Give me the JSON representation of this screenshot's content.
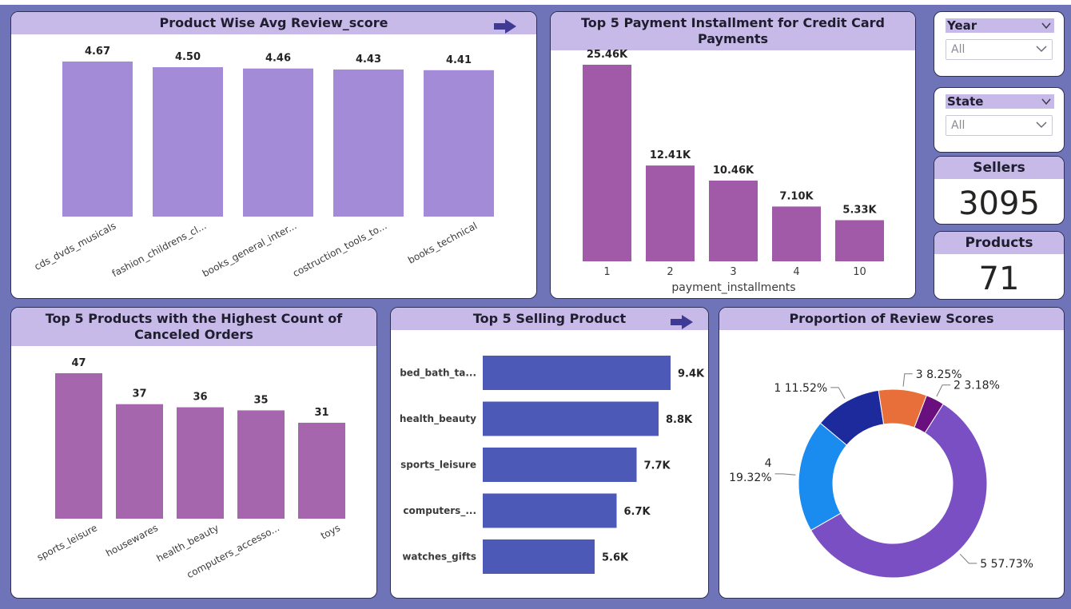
{
  "charts": {
    "review_score": {
      "title": "Product Wise Avg Review_score",
      "arrow_icon": "arrow-right-icon",
      "color": "#a48bd8"
    },
    "installments": {
      "title": "Top 5 Payment Installment for Credit Card Payments",
      "color": "#a15aa8"
    },
    "canceled": {
      "title": "Top 5 Products with the Highest Count of Canceled Orders",
      "color": "#a566ae"
    },
    "selling": {
      "title": "Top 5 Selling Product",
      "arrow_icon": "arrow-right-icon",
      "color": "#4d59b7"
    },
    "proportion": {
      "title": "Proportion of Review Scores"
    }
  },
  "slicers": {
    "year": {
      "label": "Year",
      "value": "All"
    },
    "state": {
      "label": "State",
      "value": "All"
    }
  },
  "kpis": {
    "sellers": {
      "label": "Sellers",
      "value": "3095"
    },
    "products": {
      "label": "Products",
      "value": "71"
    }
  },
  "chart_data": [
    {
      "type": "bar",
      "title": "Product Wise Avg Review_score",
      "categories": [
        "cds_dvds_musicals",
        "fashion_childrens_cl...",
        "books_general_inter...",
        "costruction_tools_to...",
        "books_technical"
      ],
      "values": [
        4.67,
        4.5,
        4.46,
        4.43,
        4.41
      ],
      "labels": [
        "4.67",
        "4.50",
        "4.46",
        "4.43",
        "4.41"
      ],
      "ylim": [
        0,
        4.67
      ]
    },
    {
      "type": "bar",
      "title": "Top 5 Payment Installment for Credit Card Payments",
      "categories": [
        "1",
        "2",
        "3",
        "4",
        "10"
      ],
      "values": [
        25460,
        12410,
        10460,
        7100,
        5330
      ],
      "labels": [
        "25.46K",
        "12.41K",
        "10.46K",
        "7.10K",
        "5.33K"
      ],
      "xlabel": "payment_installments",
      "ylim": [
        0,
        25460
      ]
    },
    {
      "type": "bar",
      "title": "Top 5 Products with the Highest Count of Canceled Orders",
      "categories": [
        "sports_leisure",
        "housewares",
        "health_beauty",
        "computers_accesso...",
        "toys"
      ],
      "values": [
        47,
        37,
        36,
        35,
        31
      ],
      "labels": [
        "47",
        "37",
        "36",
        "35",
        "31"
      ],
      "ylim": [
        0,
        47
      ]
    },
    {
      "type": "bar",
      "orientation": "horizontal",
      "title": "Top 5 Selling Product",
      "categories": [
        "bed_bath_ta...",
        "health_beauty",
        "sports_leisure",
        "computers_...",
        "watches_gifts"
      ],
      "values": [
        9400,
        8800,
        7700,
        6700,
        5600
      ],
      "labels": [
        "9.4K",
        "8.8K",
        "7.7K",
        "6.7K",
        "5.6K"
      ],
      "xlim": [
        0,
        9400
      ]
    },
    {
      "type": "pie",
      "style": "donut",
      "title": "Proportion of Review Scores",
      "slices": [
        {
          "label": "2",
          "pct_label": "3.18%",
          "value": 3.18,
          "color": "#6a0f7e"
        },
        {
          "label": "5",
          "pct_label": "57.73%",
          "value": 57.73,
          "color": "#7b4fc4"
        },
        {
          "label": "4",
          "pct_label": "19.32%",
          "value": 19.32,
          "color": "#1a8cf0"
        },
        {
          "label": "1",
          "pct_label": "11.52%",
          "value": 11.52,
          "color": "#1c2a9c"
        },
        {
          "label": "3",
          "pct_label": "8.25%",
          "value": 8.25,
          "color": "#e86f3a"
        }
      ]
    }
  ]
}
